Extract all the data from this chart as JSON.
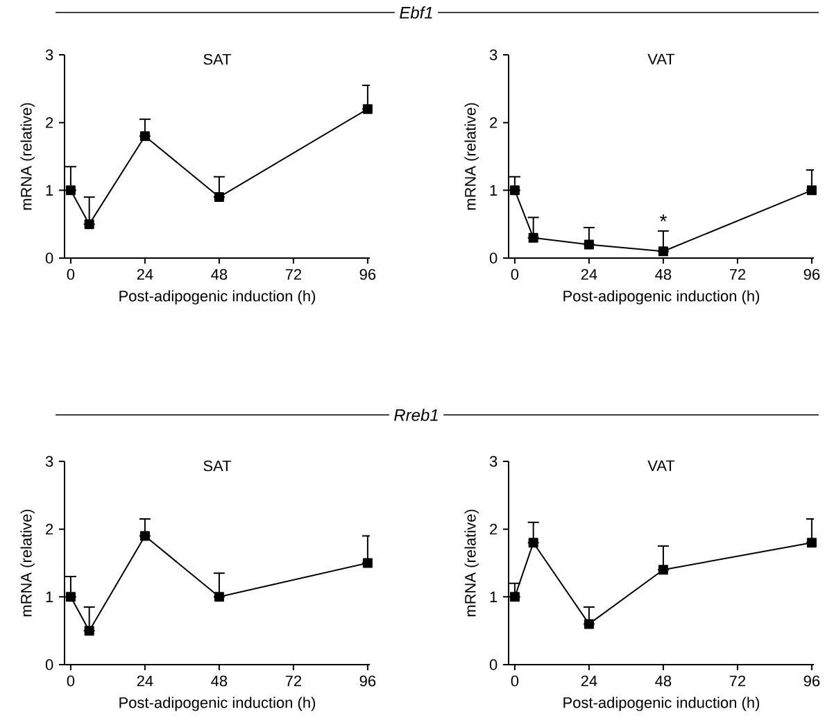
{
  "chart_data": [
    {
      "type": "other",
      "title": "*Ebf1*"
    },
    {
      "type": "line",
      "title": "SAT",
      "xlabel": "Post-adipogenic induction (h)",
      "ylabel": "mRNA (relative)",
      "x": [
        0,
        6,
        24,
        48,
        96
      ],
      "xlim": [
        -2,
        96.7
      ],
      "xticks": [
        0,
        24,
        48,
        72,
        96
      ],
      "ylim": [
        0,
        3
      ],
      "yticks": [
        0,
        1,
        2,
        3
      ],
      "marker": "square",
      "line_style": "solid",
      "grid": false,
      "series": [
        {
          "color": "#000000",
          "values": [
            1.0,
            0.5,
            1.8,
            0.9,
            2.2
          ],
          "errors": [
            [
              1.0,
              1.35
            ],
            [
              0.5,
              0.9
            ],
            [
              1.8,
              2.05
            ],
            [
              0.9,
              1.2
            ],
            [
              2.2,
              2.55
            ]
          ]
        }
      ]
    },
    {
      "type": "line",
      "title": "VAT",
      "xlabel": "Post-adipogenic induction (h)",
      "ylabel": "mRNA (relative)",
      "x": [
        0,
        6,
        24,
        48,
        96
      ],
      "xlim": [
        -2,
        96.7
      ],
      "xticks": [
        0,
        24,
        48,
        72,
        96
      ],
      "ylim": [
        0,
        3
      ],
      "yticks": [
        0,
        1,
        2,
        3
      ],
      "marker": "square",
      "line_style": "solid",
      "grid": false,
      "annotations": [
        {
          "text": "*",
          "x": 48,
          "y": 0.4
        }
      ],
      "series": [
        {
          "color": "#000000",
          "values": [
            1.0,
            0.3,
            0.2,
            0.1,
            1.0
          ],
          "errors": [
            [
              1.0,
              1.2
            ],
            [
              0.3,
              0.6
            ],
            [
              0.2,
              0.45
            ],
            [
              0.1,
              0.4
            ],
            [
              1.0,
              1.3
            ]
          ]
        }
      ]
    },
    {
      "type": "other",
      "title": "*Rreb1*"
    },
    {
      "type": "line",
      "title": "SAT",
      "xlabel": "Post-adipogenic induction (h)",
      "ylabel": "mRNA (relative)",
      "x": [
        0,
        6,
        24,
        48,
        96
      ],
      "xlim": [
        -2,
        96.7
      ],
      "xticks": [
        0,
        24,
        48,
        72,
        96
      ],
      "ylim": [
        0,
        3
      ],
      "yticks": [
        0,
        1,
        2,
        3
      ],
      "marker": "square",
      "line_style": "solid",
      "grid": false,
      "series": [
        {
          "color": "#000000",
          "values": [
            1.0,
            0.5,
            1.9,
            1.0,
            1.5
          ],
          "errors": [
            [
              1.0,
              1.3
            ],
            [
              0.5,
              0.85
            ],
            [
              1.9,
              2.15
            ],
            [
              1.0,
              1.35
            ],
            [
              1.5,
              1.9
            ]
          ]
        }
      ]
    },
    {
      "type": "line",
      "title": "VAT",
      "xlabel": "Post-adipogenic induction (h)",
      "ylabel": "mRNA (relative)",
      "x": [
        0,
        6,
        24,
        48,
        96
      ],
      "xlim": [
        -2,
        96.7
      ],
      "xticks": [
        0,
        24,
        48,
        72,
        96
      ],
      "ylim": [
        0,
        3
      ],
      "yticks": [
        0,
        1,
        2,
        3
      ],
      "marker": "square",
      "line_style": "solid",
      "grid": false,
      "series": [
        {
          "color": "#000000",
          "values": [
            1.0,
            1.8,
            0.6,
            1.4,
            1.8
          ],
          "errors": [
            [
              1.0,
              1.2
            ],
            [
              1.8,
              2.1
            ],
            [
              0.6,
              0.85
            ],
            [
              1.4,
              1.75
            ],
            [
              1.8,
              2.15
            ]
          ]
        }
      ]
    }
  ]
}
